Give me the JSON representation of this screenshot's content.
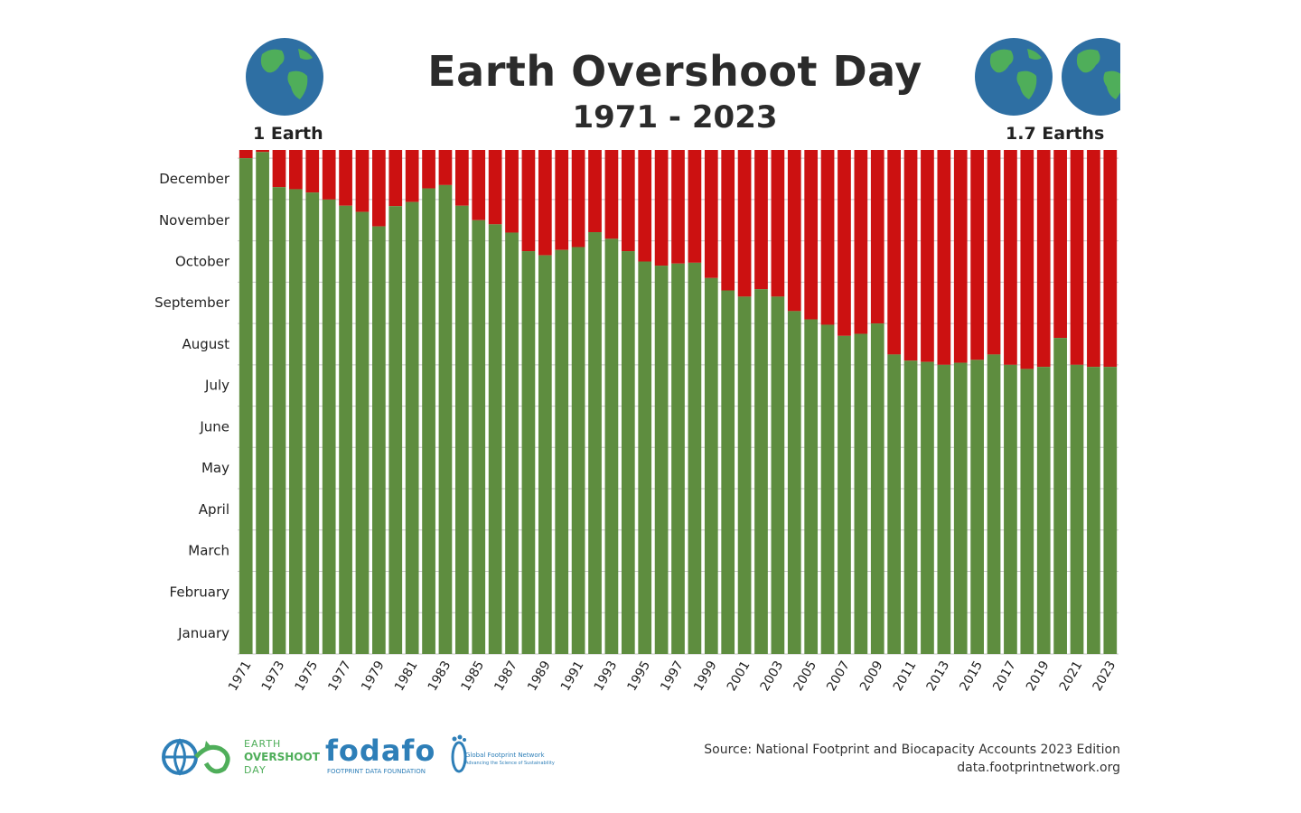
{
  "header": {
    "title": "Earth Overshoot Day",
    "subtitle": "1971 - 2023",
    "left_label": "1 Earth",
    "right_label": "1.7 Earths"
  },
  "footer": {
    "source_line": "Source: National Footprint and Biocapacity Accounts 2023 Edition",
    "source_url": "data.footprintnetwork.org",
    "logo1_line1": "EARTH",
    "logo1_line2": "OVERSHOOT",
    "logo1_line3": "DAY",
    "logo2_name": "fodafo",
    "logo2_sub": "FOOTPRINT DATA FOUNDATION",
    "logo3_name": "Global Footprint Network",
    "logo3_sub": "Advancing the Science of Sustainability"
  },
  "chart_data": {
    "type": "bar",
    "stacked": true,
    "y_unit": "month_of_year",
    "ylim": [
      0,
      12.2
    ],
    "ytick_labels": [
      "January",
      "February",
      "March",
      "April",
      "May",
      "June",
      "July",
      "August",
      "September",
      "October",
      "November",
      "December"
    ],
    "categories": [
      "1971",
      "1972",
      "1973",
      "1974",
      "1975",
      "1976",
      "1977",
      "1978",
      "1979",
      "1980",
      "1981",
      "1982",
      "1983",
      "1984",
      "1985",
      "1986",
      "1987",
      "1988",
      "1989",
      "1990",
      "1991",
      "1992",
      "1993",
      "1994",
      "1995",
      "1996",
      "1997",
      "1998",
      "1999",
      "2000",
      "2001",
      "2002",
      "2003",
      "2004",
      "2005",
      "2006",
      "2007",
      "2008",
      "2009",
      "2010",
      "2011",
      "2012",
      "2013",
      "2014",
      "2015",
      "2016",
      "2017",
      "2018",
      "2019",
      "2020",
      "2021",
      "2022",
      "2023"
    ],
    "xtick_labels": [
      "1971",
      "1973",
      "1975",
      "1977",
      "1979",
      "1981",
      "1983",
      "1985",
      "1987",
      "1989",
      "1991",
      "1993",
      "1995",
      "1997",
      "1999",
      "2001",
      "2003",
      "2005",
      "2007",
      "2009",
      "2011",
      "2013",
      "2015",
      "2017",
      "2019",
      "2021",
      "2023"
    ],
    "values": [
      12.0,
      12.15,
      11.3,
      11.25,
      11.17,
      11.0,
      10.85,
      10.7,
      10.35,
      10.84,
      10.94,
      11.27,
      11.35,
      10.85,
      10.5,
      10.4,
      10.2,
      9.75,
      9.65,
      9.78,
      9.85,
      10.21,
      10.05,
      9.75,
      9.5,
      9.4,
      9.45,
      9.47,
      9.1,
      8.8,
      8.65,
      8.83,
      8.65,
      8.3,
      8.1,
      7.97,
      7.7,
      7.75,
      8.0,
      7.25,
      7.1,
      7.07,
      7.0,
      7.05,
      7.12,
      7.25,
      7.0,
      6.9,
      6.95,
      7.65,
      7.0,
      6.95,
      6.95
    ],
    "series": [
      {
        "role": "before_overshoot",
        "color": "#5e8d3f"
      },
      {
        "role": "after_overshoot",
        "color": "#cc1111"
      }
    ],
    "grid": true
  },
  "colors": {
    "green": "#5e8d3f",
    "red": "#cc1111",
    "ocean": "#2e6fa3",
    "land": "#4fae5a",
    "logo_green": "#4fae5a",
    "logo_blue": "#2e7fb8"
  }
}
